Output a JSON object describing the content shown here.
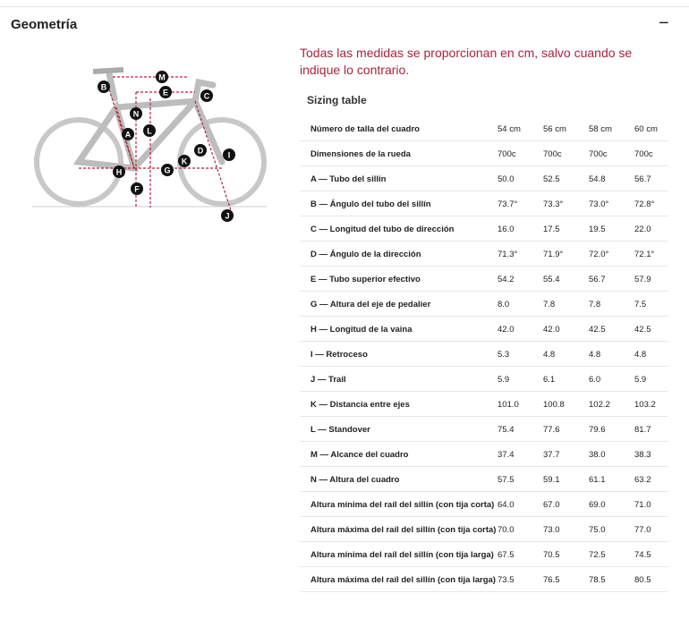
{
  "header": {
    "title": "Geometría",
    "toggle": "−"
  },
  "note": "Todas las medidas se proporcionan en cm, salvo cuando se indique lo contrario.",
  "diagram": {
    "labels": [
      "M",
      "B",
      "E",
      "C",
      "N",
      "A",
      "L",
      "D",
      "I",
      "K",
      "H",
      "G",
      "F",
      "J"
    ]
  },
  "table": {
    "title": "Sizing table",
    "header": [
      "Número de talla del cuadro",
      "54 cm",
      "56 cm",
      "58 cm",
      "60 cm"
    ],
    "rows": [
      [
        "Dimensiones de la rueda",
        "700c",
        "700c",
        "700c",
        "700c"
      ],
      [
        "A — Tubo del sillín",
        "50.0",
        "52.5",
        "54.8",
        "56.7"
      ],
      [
        "B — Ángulo del tubo del sillín",
        "73.7°",
        "73.3°",
        "73.0°",
        "72.8°"
      ],
      [
        "C — Longitud del tubo de dirección",
        "16.0",
        "17.5",
        "19.5",
        "22.0"
      ],
      [
        "D — Ángulo de la dirección",
        "71.3°",
        "71.9°",
        "72.0°",
        "72.1°"
      ],
      [
        "E — Tubo superior efectivo",
        "54.2",
        "55.4",
        "56.7",
        "57.9"
      ],
      [
        "G — Altura del eje de pedalier",
        "8.0",
        "7.8",
        "7.8",
        "7.5"
      ],
      [
        "H — Longitud de la vaina",
        "42.0",
        "42.0",
        "42.5",
        "42.5"
      ],
      [
        "I — Retroceso",
        "5.3",
        "4.8",
        "4.8",
        "4.8"
      ],
      [
        "J — Trail",
        "5.9",
        "6.1",
        "6.0",
        "5.9"
      ],
      [
        "K — Distancia entre ejes",
        "101.0",
        "100.8",
        "102.2",
        "103.2"
      ],
      [
        "L — Standover",
        "75.4",
        "77.6",
        "79.6",
        "81.7"
      ],
      [
        "M — Alcance del cuadro",
        "37.4",
        "37.7",
        "38.0",
        "38.3"
      ],
      [
        "N — Altura del cuadro",
        "57.5",
        "59.1",
        "61.1",
        "63.2"
      ],
      [
        "Altura mínima del raíl del sillín (con tija corta)",
        "64.0",
        "67.0",
        "69.0",
        "71.0"
      ],
      [
        "Altura máxima del raíl del sillín (con tija corta)",
        "70.0",
        "73.0",
        "75.0",
        "77.0"
      ],
      [
        "Altura mínima del raíl del sillín (con tija larga)",
        "67.5",
        "70.5",
        "72.5",
        "74.5"
      ],
      [
        "Altura máxima del raíl del sillín (con tija larga)",
        "73.5",
        "76.5",
        "78.5",
        "80.5"
      ]
    ]
  }
}
